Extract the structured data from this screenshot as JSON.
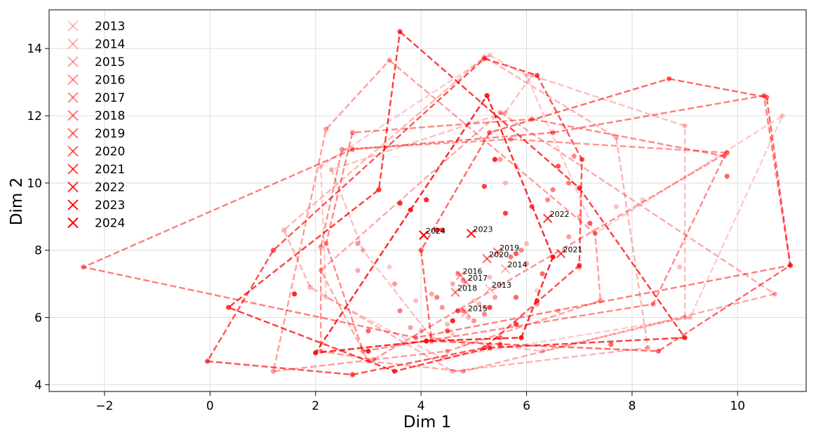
{
  "chart_data": {
    "type": "scatter",
    "title": "",
    "xlabel": "Dim 1",
    "ylabel": "Dim 2",
    "xlim": [
      -3.05,
      11.3
    ],
    "ylim": [
      3.8,
      15.15
    ],
    "xticks": [
      -2,
      0,
      2,
      4,
      6,
      8,
      10
    ],
    "yticks": [
      4,
      6,
      8,
      10,
      12,
      14
    ],
    "xtick_labels": [
      "−2",
      "0",
      "2",
      "4",
      "6",
      "8",
      "10"
    ],
    "ytick_labels": [
      "4",
      "6",
      "8",
      "10",
      "12",
      "14"
    ],
    "grid": true,
    "legend_position": "top-left",
    "color": "#ff0000",
    "series": [
      {
        "name": "2013",
        "alpha": 0.25,
        "centroid": [
          5.3,
          6.85
        ],
        "hull": [
          [
            5.3,
            13.8
          ],
          [
            6.0,
            13.2
          ],
          [
            7.3,
            8.5
          ],
          [
            10.85,
            12.0
          ],
          [
            9.1,
            6.0
          ],
          [
            4.4,
            4.8
          ],
          [
            2.2,
            6.6
          ],
          [
            2.1,
            10.5
          ]
        ],
        "points": [
          [
            5.0,
            6.5
          ],
          [
            5.5,
            7.0
          ],
          [
            4.6,
            5.5
          ],
          [
            6.2,
            6.8
          ],
          [
            3.4,
            7.5
          ],
          [
            8.2,
            9.5
          ],
          [
            5.8,
            10.5
          ],
          [
            4.8,
            5.2
          ]
        ]
      },
      {
        "name": "2014",
        "alpha": 0.3,
        "centroid": [
          5.6,
          7.45
        ],
        "hull": [
          [
            5.6,
            12.1
          ],
          [
            6.1,
            13.2
          ],
          [
            9.0,
            11.7
          ],
          [
            9.0,
            6.0
          ],
          [
            6.3,
            5.0
          ],
          [
            4.2,
            5.4
          ],
          [
            2.9,
            8.0
          ],
          [
            2.3,
            10.4
          ]
        ],
        "points": [
          [
            5.3,
            7.2
          ],
          [
            6.0,
            8.2
          ],
          [
            4.9,
            6.0
          ],
          [
            7.7,
            9.3
          ],
          [
            5.6,
            10.0
          ],
          [
            3.9,
            6.5
          ],
          [
            8.9,
            7.5
          ]
        ]
      },
      {
        "name": "2015",
        "alpha": 0.35,
        "centroid": [
          4.85,
          6.15
        ],
        "hull": [
          [
            5.2,
            13.75
          ],
          [
            7.7,
            11.35
          ],
          [
            8.3,
            5.1
          ],
          [
            4.6,
            4.4
          ],
          [
            1.9,
            6.9
          ],
          [
            1.4,
            8.6
          ]
        ],
        "points": [
          [
            4.5,
            5.8
          ],
          [
            5.1,
            6.4
          ],
          [
            4.0,
            5.6
          ],
          [
            6.6,
            6.2
          ],
          [
            3.0,
            5.6
          ],
          [
            7.0,
            9.0
          ]
        ]
      },
      {
        "name": "2016",
        "alpha": 0.4,
        "centroid": [
          4.75,
          7.25
        ],
        "hull": [
          [
            5.5,
            12.1
          ],
          [
            10.7,
            6.7
          ],
          [
            4.8,
            4.4
          ],
          [
            3.0,
            4.7
          ],
          [
            2.1,
            7.4
          ]
        ],
        "points": [
          [
            4.6,
            7.0
          ],
          [
            5.2,
            6.3
          ],
          [
            4.2,
            6.7
          ],
          [
            6.0,
            7.6
          ],
          [
            2.8,
            7.4
          ],
          [
            9.8,
            10.9
          ]
        ]
      },
      {
        "name": "2017",
        "alpha": 0.45,
        "centroid": [
          4.85,
          7.05
        ],
        "hull": [
          [
            3.4,
            13.65
          ],
          [
            7.3,
            8.5
          ],
          [
            7.4,
            6.5
          ],
          [
            4.5,
            5.0
          ],
          [
            1.2,
            4.4
          ],
          [
            2.2,
            11.6
          ]
        ],
        "points": [
          [
            4.8,
            7.1
          ],
          [
            5.4,
            6.6
          ],
          [
            3.8,
            5.7
          ],
          [
            6.8,
            8.4
          ],
          [
            3.5,
            7.0
          ],
          [
            5.5,
            10.7
          ]
        ]
      },
      {
        "name": "2018",
        "alpha": 0.5,
        "centroid": [
          4.65,
          6.75
        ],
        "hull": [
          [
            5.7,
            11.3
          ],
          [
            9.8,
            10.9
          ],
          [
            3.1,
            4.75
          ],
          [
            2.1,
            5.0
          ],
          [
            2.1,
            8.1
          ],
          [
            2.5,
            11.0
          ]
        ],
        "points": [
          [
            4.4,
            6.3
          ],
          [
            5.0,
            5.9
          ],
          [
            4.1,
            5.3
          ],
          [
            6.2,
            6.4
          ],
          [
            2.8,
            8.2
          ],
          [
            3.0,
            5.6
          ]
        ]
      },
      {
        "name": "2019",
        "alpha": 0.55,
        "centroid": [
          5.45,
          7.95
        ],
        "hull": [
          [
            6.1,
            11.9
          ],
          [
            9.75,
            10.8
          ],
          [
            8.4,
            6.4
          ],
          [
            2.9,
            5.0
          ],
          [
            2.2,
            8.2
          ],
          [
            2.7,
            11.5
          ]
        ],
        "points": [
          [
            5.9,
            8.0
          ],
          [
            6.4,
            9.5
          ],
          [
            4.7,
            7.3
          ],
          [
            7.0,
            7.5
          ],
          [
            5.2,
            6.1
          ],
          [
            6.9,
            10.8
          ]
        ]
      },
      {
        "name": "2020",
        "alpha": 0.6,
        "centroid": [
          5.25,
          7.75
        ],
        "hull": [
          [
            6.5,
            11.5
          ],
          [
            10.5,
            12.6
          ],
          [
            11.0,
            7.55
          ],
          [
            3.9,
            5.4
          ],
          [
            -2.4,
            7.5
          ],
          [
            2.7,
            11.0
          ]
        ],
        "points": [
          [
            5.7,
            7.8
          ],
          [
            6.5,
            9.8
          ],
          [
            4.3,
            6.6
          ],
          [
            6.8,
            10.0
          ],
          [
            3.6,
            6.2
          ],
          [
            4.8,
            6.2
          ]
        ]
      },
      {
        "name": "2021",
        "alpha": 0.7,
        "centroid": [
          6.65,
          7.9
        ],
        "hull": [
          [
            8.7,
            13.1
          ],
          [
            10.55,
            12.55
          ],
          [
            11.0,
            7.55
          ],
          [
            8.5,
            5.0
          ],
          [
            4.2,
            5.3
          ],
          [
            4.0,
            8.0
          ],
          [
            5.3,
            11.5
          ]
        ],
        "points": [
          [
            6.3,
            7.3
          ],
          [
            7.2,
            8.8
          ],
          [
            5.8,
            6.6
          ],
          [
            9.8,
            10.2
          ],
          [
            5.5,
            5.4
          ],
          [
            7.6,
            5.2
          ]
        ]
      },
      {
        "name": "2022",
        "alpha": 0.8,
        "centroid": [
          6.4,
          8.95
        ],
        "hull": [
          [
            5.2,
            13.7
          ],
          [
            6.2,
            13.2
          ],
          [
            7.05,
            10.7
          ],
          [
            7.0,
            7.55
          ],
          [
            5.2,
            5.1
          ],
          [
            2.7,
            4.3
          ],
          [
            -0.05,
            4.7
          ],
          [
            1.2,
            8.0
          ]
        ],
        "points": [
          [
            6.1,
            9.3
          ],
          [
            6.6,
            10.5
          ],
          [
            5.8,
            7.9
          ],
          [
            6.2,
            6.5
          ],
          [
            4.5,
            5.6
          ],
          [
            5.5,
            5.2
          ]
        ]
      },
      {
        "name": "2023",
        "alpha": 0.9,
        "centroid": [
          4.95,
          8.5
        ],
        "hull": [
          [
            3.6,
            14.5
          ],
          [
            7.0,
            9.85
          ],
          [
            9.0,
            5.4
          ],
          [
            5.3,
            5.1
          ],
          [
            3.5,
            4.4
          ],
          [
            0.35,
            6.3
          ],
          [
            3.2,
            9.8
          ]
        ],
        "points": [
          [
            5.2,
            9.9
          ],
          [
            5.6,
            9.1
          ],
          [
            4.4,
            8.6
          ],
          [
            5.3,
            6.3
          ],
          [
            4.7,
            6.2
          ],
          [
            5.8,
            5.8
          ]
        ]
      },
      {
        "name": "2024",
        "alpha": 1.0,
        "centroid": [
          4.05,
          8.45
        ],
        "hull": [
          [
            5.25,
            12.6
          ],
          [
            6.5,
            7.8
          ],
          [
            5.9,
            5.4
          ],
          [
            4.1,
            5.3
          ],
          [
            2.0,
            4.95
          ],
          [
            3.8,
            9.2
          ]
        ],
        "points": [
          [
            4.3,
            8.6
          ],
          [
            4.1,
            9.5
          ],
          [
            3.6,
            9.4
          ],
          [
            4.6,
            5.9
          ],
          [
            3.0,
            5.0
          ],
          [
            1.6,
            6.7
          ],
          [
            5.4,
            10.7
          ]
        ]
      }
    ]
  }
}
